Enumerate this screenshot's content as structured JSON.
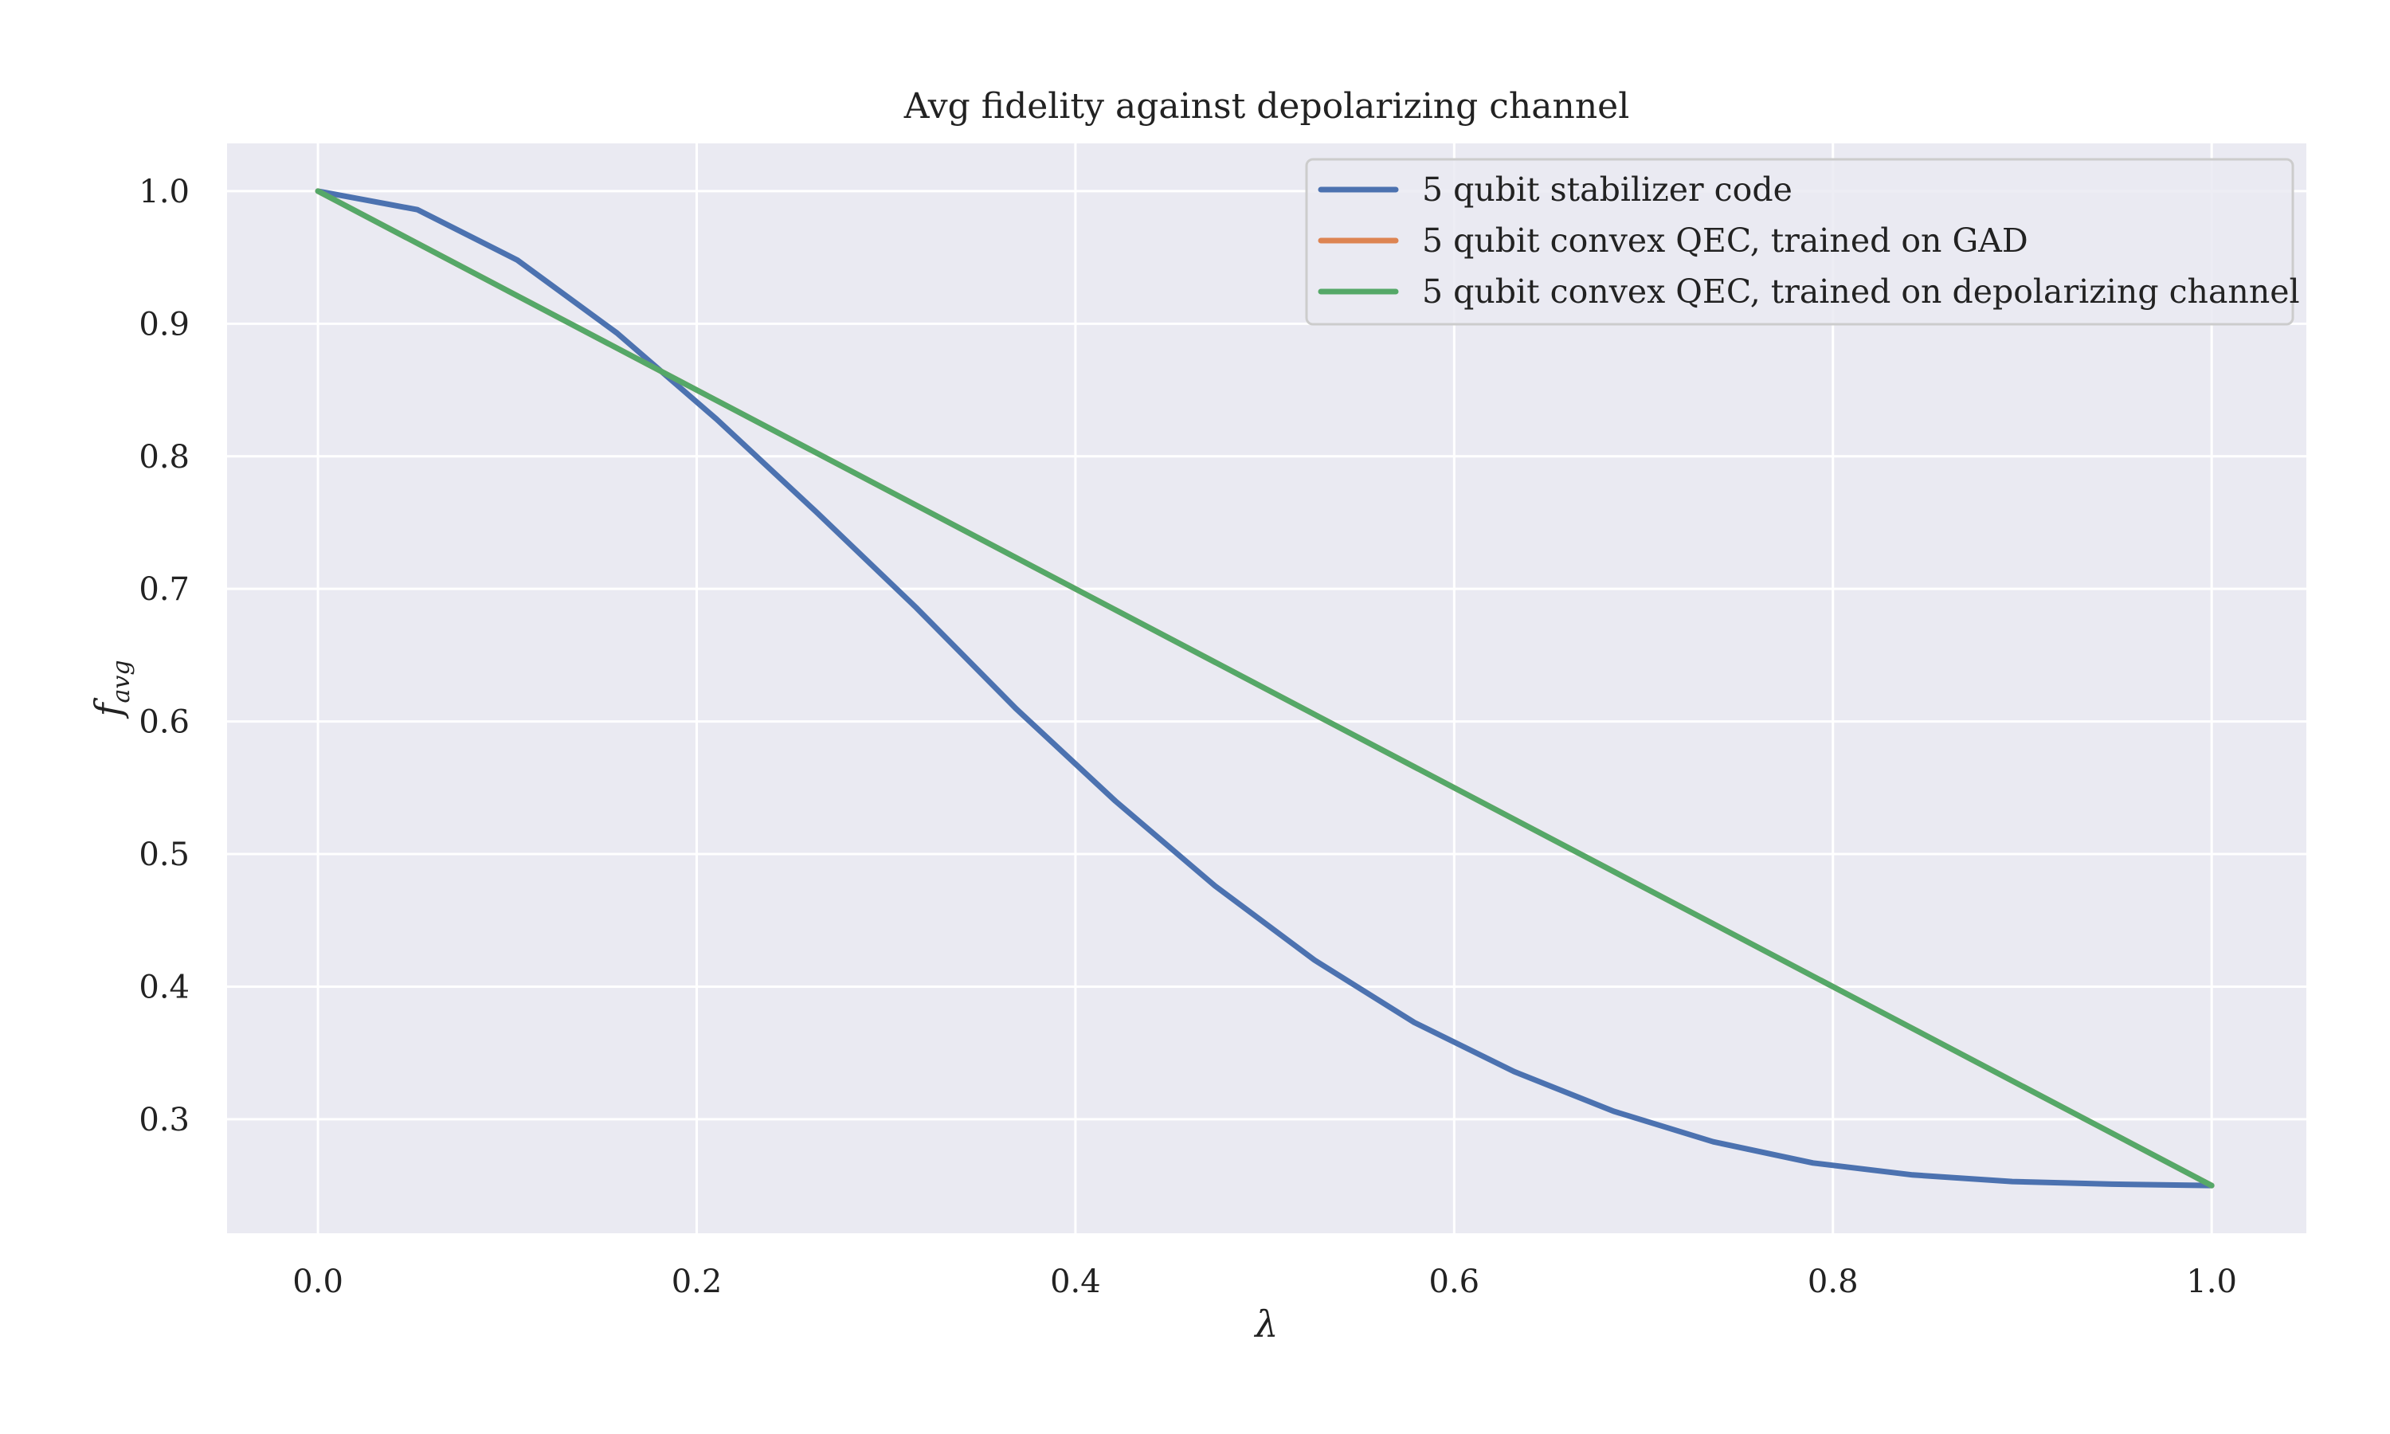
{
  "chart_data": {
    "type": "line",
    "title": "Avg fidelity against depolarizing channel",
    "xlabel": "λ",
    "ylabel": "f_avg",
    "xlim": [
      -0.048,
      1.05
    ],
    "ylim": [
      0.214,
      1.036
    ],
    "x_ticks": [
      0.0,
      0.2,
      0.4,
      0.6,
      0.8,
      1.0
    ],
    "x_tick_labels": [
      "0.0",
      "0.2",
      "0.4",
      "0.6",
      "0.8",
      "1.0"
    ],
    "y_ticks": [
      0.3,
      0.4,
      0.5,
      0.6,
      0.7,
      0.8,
      0.9,
      1.0
    ],
    "y_tick_labels": [
      "0.3",
      "0.4",
      "0.5",
      "0.6",
      "0.7",
      "0.8",
      "0.9",
      "1.0"
    ],
    "grid": true,
    "legend_position": "top-right",
    "background_color": "#EAEAF2",
    "series": [
      {
        "name": "5 qubit stabilizer code",
        "color": "#4C72B0",
        "x": [
          0.0,
          0.0526,
          0.1053,
          0.1579,
          0.2105,
          0.2632,
          0.3158,
          0.3684,
          0.4211,
          0.4737,
          0.5263,
          0.5789,
          0.6316,
          0.6842,
          0.7368,
          0.7895,
          0.8421,
          0.8947,
          0.9474,
          1.0
        ],
        "y": [
          1.0,
          0.986,
          0.948,
          0.893,
          0.828,
          0.758,
          0.686,
          0.61,
          0.54,
          0.476,
          0.42,
          0.373,
          0.336,
          0.306,
          0.283,
          0.267,
          0.258,
          0.253,
          0.251,
          0.25
        ]
      },
      {
        "name": "5 qubit convex QEC, trained on GAD",
        "color": "#DD8452",
        "x": [
          0.0,
          1.0
        ],
        "y": [
          1.0,
          0.25
        ]
      },
      {
        "name": "5 qubit convex QEC, trained on depolarizing channel",
        "color": "#55A868",
        "x": [
          0.0,
          1.0
        ],
        "y": [
          1.0,
          0.25
        ]
      }
    ]
  }
}
